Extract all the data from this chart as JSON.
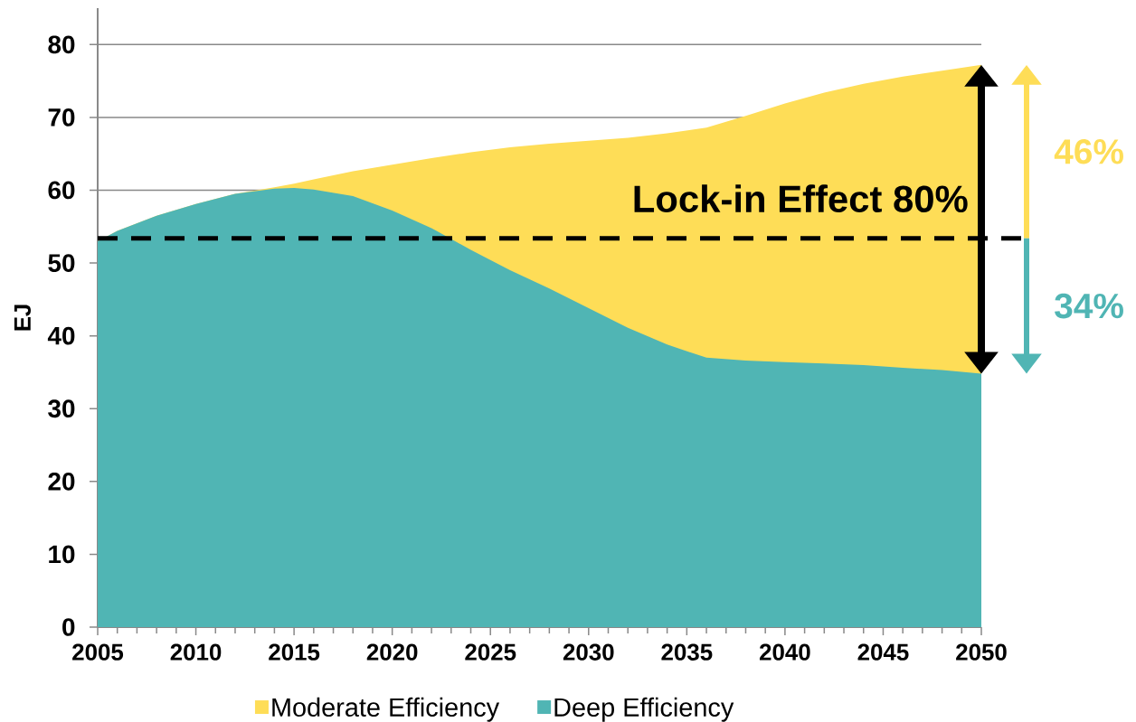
{
  "chart_data": {
    "type": "area",
    "ylabel": "EJ",
    "x": [
      2005,
      2006,
      2008,
      2010,
      2012,
      2014,
      2015,
      2016,
      2018,
      2020,
      2022,
      2024,
      2026,
      2028,
      2030,
      2032,
      2034,
      2036,
      2038,
      2040,
      2042,
      2044,
      2046,
      2048,
      2050
    ],
    "series": [
      {
        "name": "Moderate Efficiency",
        "color": "#fedd57",
        "values": [
          53.0,
          54.4,
          56.5,
          58.1,
          59.5,
          60.4,
          60.9,
          61.5,
          62.6,
          63.5,
          64.4,
          65.2,
          65.9,
          66.4,
          66.8,
          67.2,
          67.8,
          68.6,
          70.2,
          71.9,
          73.4,
          74.6,
          75.6,
          76.4,
          77.2
        ]
      },
      {
        "name": "Deep Efficiency",
        "color": "#50b5b4",
        "values": [
          53.0,
          54.4,
          56.5,
          58.1,
          59.5,
          60.2,
          60.3,
          60.1,
          59.2,
          57.2,
          54.8,
          51.8,
          49.0,
          46.5,
          43.8,
          41.1,
          38.8,
          37.0,
          36.6,
          36.4,
          36.2,
          36.0,
          35.6,
          35.3,
          34.8
        ]
      }
    ],
    "xlim": [
      2005,
      2050
    ],
    "xticks": [
      2005,
      2010,
      2015,
      2020,
      2025,
      2030,
      2035,
      2040,
      2045,
      2050
    ],
    "ylim": [
      0,
      85
    ],
    "yticks": [
      0,
      10,
      20,
      30,
      40,
      50,
      60,
      70,
      80
    ],
    "grid": "y",
    "legend": "bottom",
    "ref_lines": [
      {
        "axis": "y",
        "value": 53.4,
        "label": "Lock-in Effect 80%",
        "color": "#000000",
        "line_style": "dashed"
      }
    ],
    "annotations": [
      "46%",
      "34%"
    ]
  }
}
